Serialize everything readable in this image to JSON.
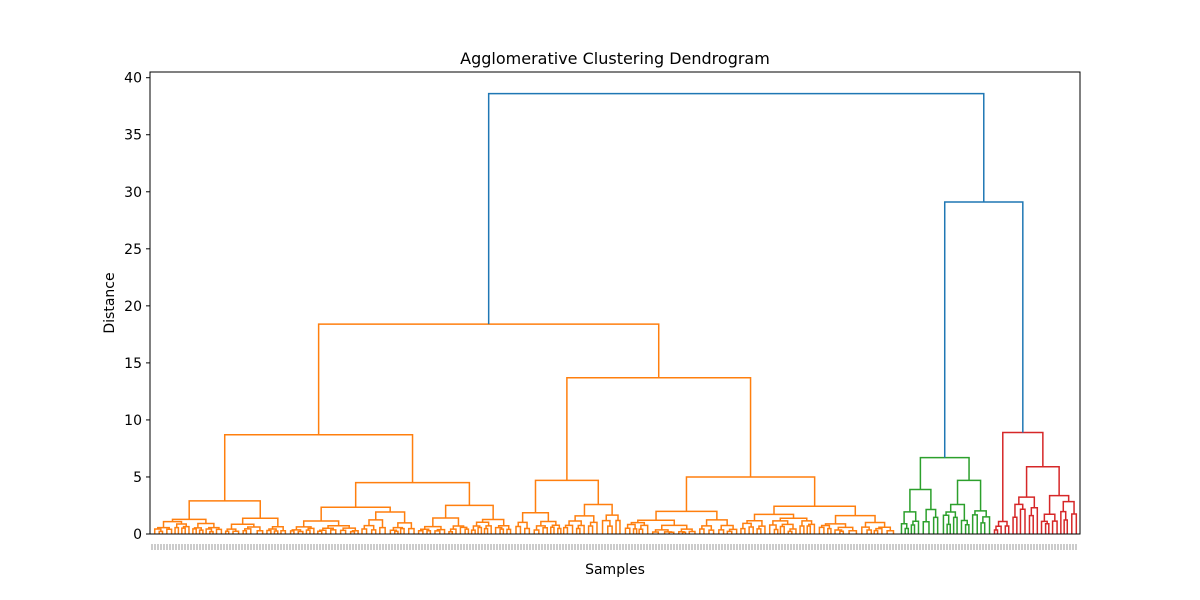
{
  "chart_data": {
    "type": "dendrogram",
    "title": "Agglomerative Clustering Dendrogram",
    "xlabel": "Samples",
    "ylabel": "Distance",
    "ylim": [
      0,
      40.5
    ],
    "yticks": [
      0,
      5,
      10,
      15,
      20,
      25,
      30,
      35,
      40
    ],
    "grid": false,
    "colors": {
      "cluster_1": "#ff7f0e",
      "cluster_2": "#2ca02c",
      "cluster_3": "#d62728",
      "above_threshold": "#1f77b4",
      "axes": "#000000"
    },
    "merges": [
      {
        "label": "root",
        "distance": 38.6,
        "children": [
          "cluster_1_top",
          "right_group"
        ],
        "color": "above_threshold"
      },
      {
        "label": "right_group",
        "distance": 29.1,
        "children": [
          "cluster_2_top",
          "cluster_3_top"
        ],
        "color": "above_threshold"
      },
      {
        "label": "cluster_1_top",
        "distance": 18.4,
        "children": [
          "c1_left",
          "c1_right"
        ],
        "color": "cluster_1"
      },
      {
        "label": "c1_left",
        "distance": 8.7,
        "children": [
          "c1_ll",
          "c1_lr"
        ],
        "color": "cluster_1"
      },
      {
        "label": "c1_ll",
        "distance": 2.9,
        "color": "cluster_1"
      },
      {
        "label": "c1_lr",
        "distance": 4.5,
        "color": "cluster_1"
      },
      {
        "label": "c1_right",
        "distance": 13.7,
        "children": [
          "c1_rl",
          "c1_rr"
        ],
        "color": "cluster_1"
      },
      {
        "label": "c1_rl",
        "distance": 4.7,
        "color": "cluster_1"
      },
      {
        "label": "c1_rr",
        "distance": 5.0,
        "color": "cluster_1"
      },
      {
        "label": "cluster_2_top",
        "distance": 6.7,
        "children": [
          "c2_l",
          "c2_r"
        ],
        "color": "cluster_2"
      },
      {
        "label": "c2_l",
        "distance": 3.9,
        "color": "cluster_2"
      },
      {
        "label": "c2_r",
        "distance": 4.7,
        "color": "cluster_2"
      },
      {
        "label": "cluster_3_top",
        "distance": 8.9,
        "children": [
          "c3_l",
          "c3_r"
        ],
        "color": "cluster_3"
      },
      {
        "label": "c3_l",
        "distance": 1.1,
        "color": "cluster_3"
      },
      {
        "label": "c3_r",
        "distance": 5.9,
        "color": "cluster_3"
      }
    ]
  }
}
